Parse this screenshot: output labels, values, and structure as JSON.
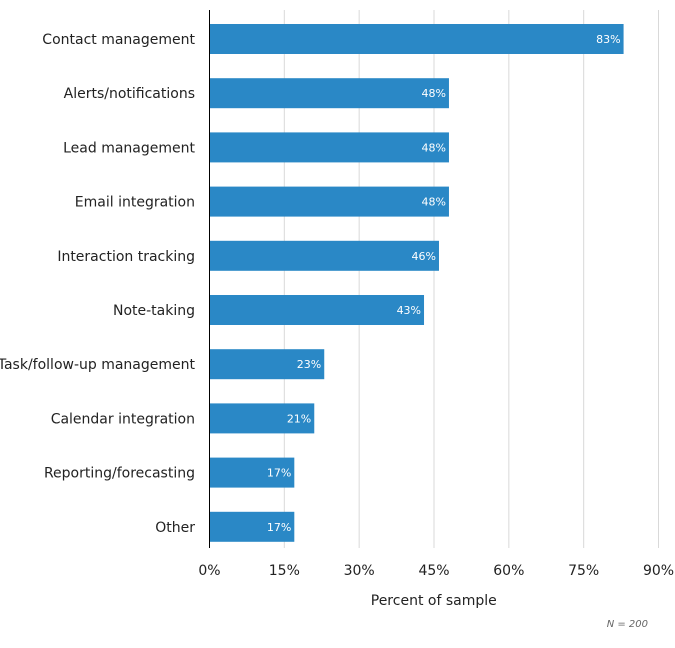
{
  "chart_data": {
    "type": "bar",
    "orientation": "horizontal",
    "title": "",
    "xlabel": "Percent of sample",
    "ylabel": "",
    "xlim": [
      0,
      90
    ],
    "xticks": [
      0,
      15,
      30,
      45,
      60,
      75,
      90
    ],
    "xtick_labels": [
      "0%",
      "15%",
      "30%",
      "45%",
      "60%",
      "75%",
      "90%"
    ],
    "grid": "vertical",
    "bar_color": "#2a88c6",
    "categories": [
      "Contact management",
      "Alerts/notifications",
      "Lead management",
      "Email integration",
      "Interaction tracking",
      "Note-taking",
      "Task/follow-up management",
      "Calendar integration",
      "Reporting/forecasting",
      "Other"
    ],
    "values": [
      83,
      48,
      48,
      48,
      46,
      43,
      23,
      21,
      17,
      17
    ],
    "data_labels": [
      "83%",
      "48%",
      "48%",
      "48%",
      "46%",
      "43%",
      "23%",
      "21%",
      "17%",
      "17%"
    ],
    "note": "N = 200"
  }
}
